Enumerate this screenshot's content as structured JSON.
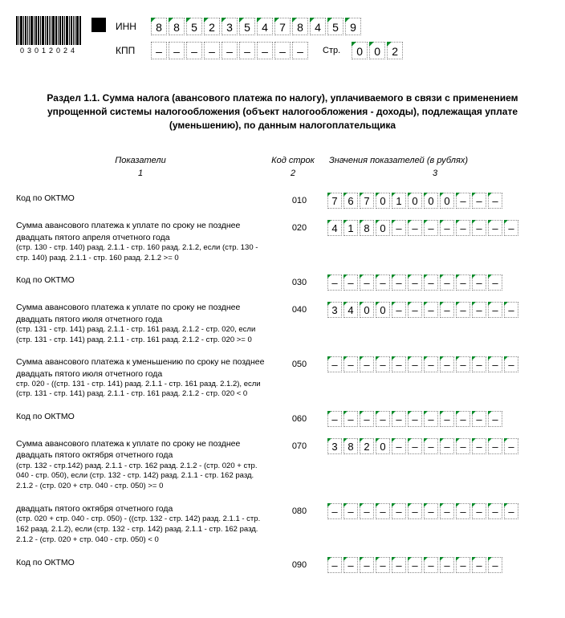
{
  "barcode_text": "03012024",
  "inn_label": "ИНН",
  "kpp_label": "КПП",
  "str_label": "Стр.",
  "inn": [
    "8",
    "8",
    "5",
    "2",
    "3",
    "5",
    "4",
    "7",
    "8",
    "4",
    "5",
    "9"
  ],
  "kpp": [
    "–",
    "–",
    "–",
    "–",
    "–",
    "–",
    "–",
    "–",
    "–"
  ],
  "page": [
    "0",
    "0",
    "2"
  ],
  "section_title": "Раздел 1.1. Сумма налога (авансового платежа по налогу), уплачиваемого в связи с применением упрощенной системы налогообложения (объект налогообложения - доходы), подлежащая уплате (уменьшению), по данным налогоплательщика",
  "headers": {
    "c1": "Показатели",
    "c2": "Код строк",
    "c3": "Значения показателей (в рублях)"
  },
  "nums": {
    "c1": "1",
    "c2": "2",
    "c3": "3"
  },
  "rows": [
    {
      "label": "Код по ОКТМО",
      "sub": "",
      "code": "010",
      "value": [
        "7",
        "6",
        "7",
        "0",
        "1",
        "0",
        "0",
        "0",
        "–",
        "–",
        "–"
      ]
    },
    {
      "label": "Сумма авансового платежа к уплате по сроку не позднее двадцать пятого апреля отчетного года",
      "sub": "(стр. 130 - стр. 140) разд. 2.1.1 - стр. 160 разд. 2.1.2, если (стр. 130 - стр. 140) разд. 2.1.1 - стр. 160 разд. 2.1.2 >= 0",
      "code": "020",
      "value": [
        "4",
        "1",
        "8",
        "0",
        "–",
        "–",
        "–",
        "–",
        "–",
        "–",
        "–",
        "–"
      ]
    },
    {
      "label": "Код по ОКТМО",
      "sub": "",
      "code": "030",
      "value": [
        "–",
        "–",
        "–",
        "–",
        "–",
        "–",
        "–",
        "–",
        "–",
        "–",
        "–"
      ]
    },
    {
      "label": "Сумма авансового платежа к уплате по сроку не позднее двадцать пятого июля отчетного года",
      "sub": "(стр. 131 - стр. 141) разд. 2.1.1 - стр. 161 разд. 2.1.2 - стр. 020, если (стр. 131 - стр. 141) разд. 2.1.1 - стр. 161 разд. 2.1.2 - стр. 020 >= 0",
      "code": "040",
      "value": [
        "3",
        "4",
        "0",
        "0",
        "–",
        "–",
        "–",
        "–",
        "–",
        "–",
        "–",
        "–"
      ]
    },
    {
      "label": "Сумма авансового платежа к уменьшению по сроку не позднее двадцать пятого июля отчетного года",
      "sub": "стр. 020 - ((стр. 131 - стр. 141) разд. 2.1.1 - стр. 161 разд. 2.1.2), если (стр. 131 - стр. 141) разд. 2.1.1 - стр. 161 разд. 2.1.2 - стр. 020 < 0",
      "code": "050",
      "value": [
        "–",
        "–",
        "–",
        "–",
        "–",
        "–",
        "–",
        "–",
        "–",
        "–",
        "–",
        "–"
      ]
    },
    {
      "label": "Код по ОКТМО",
      "sub": "",
      "code": "060",
      "value": [
        "–",
        "–",
        "–",
        "–",
        "–",
        "–",
        "–",
        "–",
        "–",
        "–",
        "–"
      ]
    },
    {
      "label": "Сумма авансового платежа к уплате по сроку не позднее двадцать пятого октября отчетного года",
      "sub": "(стр. 132 - стр.142) разд. 2.1.1 - стр. 162 разд. 2.1.2 - (стр. 020 + стр. 040 - стр. 050), если (стр. 132 - стр. 142) разд. 2.1.1 - стр. 162 разд. 2.1.2 - (стр. 020 + стр. 040 - стр. 050) >= 0",
      "code": "070",
      "value": [
        "3",
        "8",
        "2",
        "0",
        "–",
        "–",
        "–",
        "–",
        "–",
        "–",
        "–",
        "–"
      ]
    },
    {
      "label": "двадцать пятого октября отчетного года",
      "sub": "(стр. 020 + стр. 040 - стр. 050) - ((стр. 132 - стр. 142) разд. 2.1.1 - стр. 162 разд. 2.1.2), если (стр. 132 - стр. 142) разд. 2.1.1 - стр. 162 разд. 2.1.2 - (стр. 020 + стр. 040 - стр. 050) < 0",
      "code": "080",
      "value": [
        "–",
        "–",
        "–",
        "–",
        "–",
        "–",
        "–",
        "–",
        "–",
        "–",
        "–",
        "–"
      ]
    },
    {
      "label": "Код по ОКТМО",
      "sub": "",
      "code": "090",
      "value": [
        "–",
        "–",
        "–",
        "–",
        "–",
        "–",
        "–",
        "–",
        "–",
        "–",
        "–"
      ]
    }
  ]
}
